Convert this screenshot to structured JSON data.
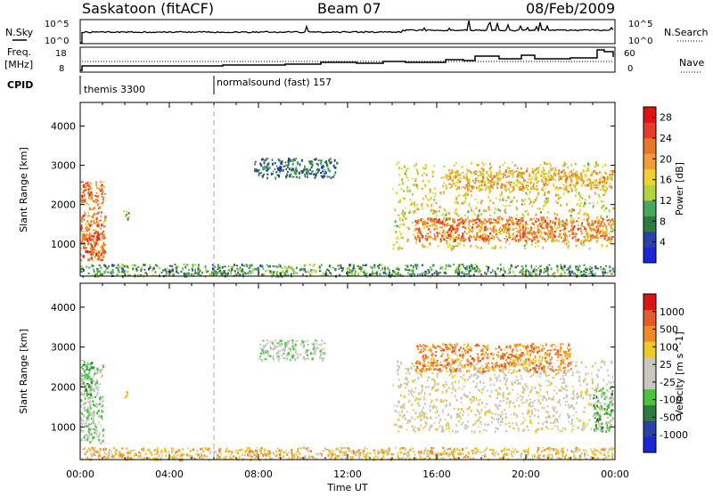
{
  "header": {
    "title": "Saskatoon (fitACF)",
    "beam": "Beam 07",
    "date": "08/Feb/2009"
  },
  "strip_labels": {
    "nsky": "N.Sky",
    "nsearch": "N.Search",
    "freq": "Freq.",
    "freq_unit": "[MHz]",
    "nave": "Nave",
    "cpid": "CPID",
    "nsky_ticks": [
      "10^5",
      "10^0"
    ],
    "nsearch_ticks": [
      "10^5",
      "10^0"
    ],
    "freq_ticks": [
      "18",
      "8"
    ],
    "nave_ticks": [
      "60",
      "0"
    ]
  },
  "cpid": {
    "segments": [
      {
        "start_hour": 0,
        "label": "themis 3300"
      },
      {
        "start_hour": 6,
        "label": "normalsound (fast) 157"
      }
    ]
  },
  "colors": {
    "power_scale": [
      "#1a24d8",
      "#2a3fa8",
      "#2e7a40",
      "#46a85c",
      "#b4d23c",
      "#f0d232",
      "#f0a032",
      "#e87828",
      "#e63c28",
      "#dc1414"
    ],
    "velocity_scale": [
      "#1a24d8",
      "#2a3fa8",
      "#2e7a40",
      "#46c43c",
      "#c8c8c0",
      "#c8c8c0",
      "#f0c828",
      "#f08c28",
      "#e85a28",
      "#dc1414"
    ]
  },
  "chart_data": [
    {
      "type": "heatmap",
      "name": "power",
      "xlabel": "",
      "ylabel": "Slant Range [km]",
      "xlim": [
        0,
        24
      ],
      "ylim": [
        180,
        4600
      ],
      "yticks": [
        "1000",
        "2000",
        "3000",
        "4000"
      ],
      "ytick_values": [
        1000,
        2000,
        3000,
        4000
      ],
      "colorbar_label": "Power [dB]",
      "colorbar_ticks": [
        "4",
        "8",
        "12",
        "16",
        "20",
        "24",
        "28"
      ],
      "colorbar_tick_values": [
        4,
        8,
        12,
        16,
        20,
        24,
        28
      ],
      "colorbar_range": [
        0,
        30
      ],
      "blobs": [
        {
          "t0": 0.0,
          "t1": 1.1,
          "r0": 600,
          "r1": 2600,
          "v": 22
        },
        {
          "t0": 0.1,
          "t1": 0.8,
          "r0": 700,
          "r1": 1300,
          "v": 27
        },
        {
          "t0": 0.0,
          "t1": 0.4,
          "r0": 2200,
          "r1": 2600,
          "v": 26
        },
        {
          "t0": 1.9,
          "t1": 2.2,
          "r0": 1650,
          "r1": 1900,
          "v": 10
        },
        {
          "t0": 7.8,
          "t1": 11.5,
          "r0": 2700,
          "r1": 3200,
          "v": 6
        },
        {
          "t0": 14.0,
          "t1": 23.9,
          "r0": 900,
          "r1": 3100,
          "v": 16
        },
        {
          "t0": 15.0,
          "t1": 23.9,
          "r0": 1100,
          "r1": 1700,
          "v": 23
        },
        {
          "t0": 16.5,
          "t1": 23.9,
          "r0": 2400,
          "r1": 2900,
          "v": 19
        },
        {
          "t0": 0.0,
          "t1": 23.9,
          "r0": 200,
          "r1": 500,
          "v": 9
        }
      ]
    },
    {
      "type": "heatmap",
      "name": "velocity",
      "xlabel": "Time UT",
      "ylabel": "Slant Range [km]",
      "xlim": [
        0,
        24
      ],
      "ylim": [
        180,
        4600
      ],
      "xticks": [
        "00:00",
        "04:00",
        "08:00",
        "12:00",
        "16:00",
        "20:00",
        "00:00"
      ],
      "xtick_values": [
        0,
        4,
        8,
        12,
        16,
        20,
        24
      ],
      "yticks": [
        "1000",
        "2000",
        "3000",
        "4000"
      ],
      "ytick_values": [
        1000,
        2000,
        3000,
        4000
      ],
      "colorbar_label": "Velocity [m s^-1]",
      "colorbar_ticks": [
        "1000",
        "500",
        "100",
        "25",
        "-25",
        "-100",
        "-500",
        "-1000"
      ],
      "blobs": [
        {
          "t0": 0.0,
          "t1": 1.0,
          "r0": 600,
          "r1": 2600,
          "v": 4
        },
        {
          "t0": 0.0,
          "t1": 0.6,
          "r0": 1800,
          "r1": 2700,
          "v": 3
        },
        {
          "t0": 1.9,
          "t1": 2.1,
          "r0": 1700,
          "r1": 1900,
          "v": 7
        },
        {
          "t0": 8.0,
          "t1": 11.0,
          "r0": 2700,
          "r1": 3200,
          "v": 4
        },
        {
          "t0": 14.0,
          "t1": 23.9,
          "r0": 900,
          "r1": 2700,
          "v": 5
        },
        {
          "t0": 15.0,
          "t1": 22.0,
          "r0": 2400,
          "r1": 3100,
          "v": 7
        },
        {
          "t0": 23.0,
          "t1": 23.9,
          "r0": 900,
          "r1": 2000,
          "v": 3
        },
        {
          "t0": 0.0,
          "t1": 23.9,
          "r0": 200,
          "r1": 500,
          "v": 6
        }
      ]
    }
  ]
}
